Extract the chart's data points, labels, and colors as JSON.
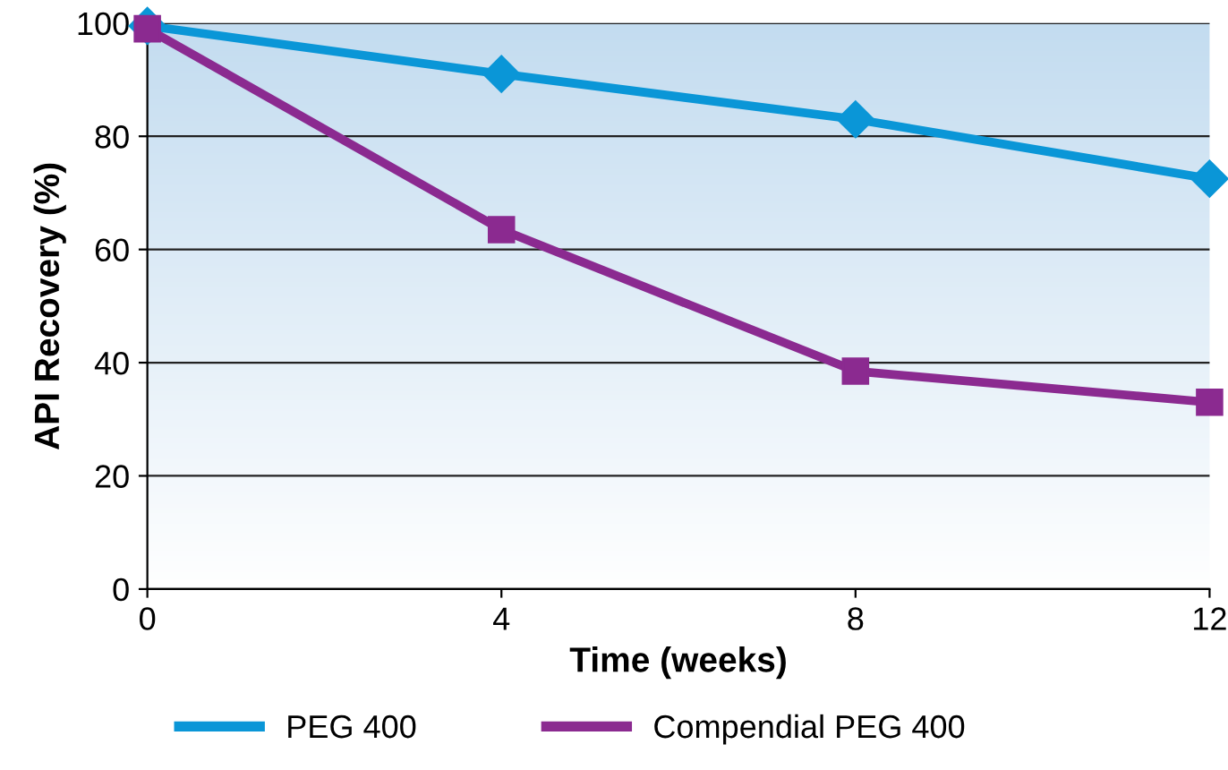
{
  "chart_data": {
    "type": "line",
    "xlabel": "Time (weeks)",
    "ylabel": "API Recovery (%)",
    "x": [
      0,
      4,
      8,
      12
    ],
    "series": [
      {
        "name": "PEG 400",
        "color": "#0a96d7",
        "values": [
          99.5,
          91,
          83,
          72.5
        ],
        "marker": "diamond"
      },
      {
        "name": "Compendial PEG 400",
        "color": "#8b2a90",
        "values": [
          99,
          63.5,
          38.5,
          33
        ],
        "marker": "square"
      }
    ],
    "xlim": [
      0,
      12
    ],
    "xticks": [
      0,
      4,
      8,
      12
    ],
    "ylim": [
      0,
      100
    ],
    "yticks": [
      0,
      20,
      40,
      60,
      80,
      100
    ],
    "grid": "y",
    "legend": "bottom",
    "line_style": "solid"
  }
}
